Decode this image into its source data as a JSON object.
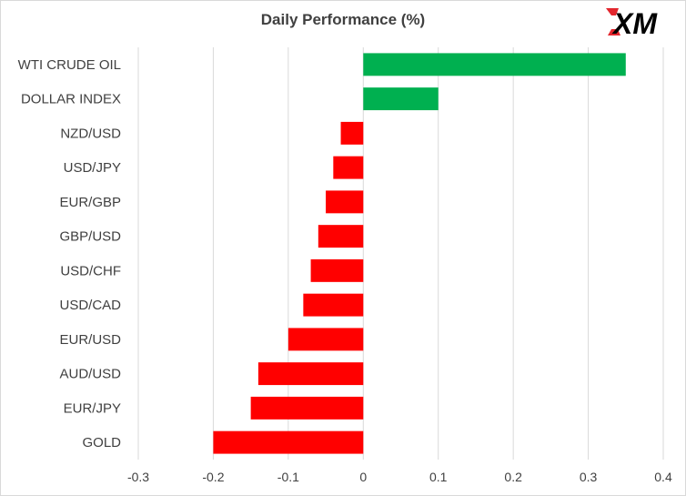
{
  "chart_data": {
    "type": "bar",
    "orientation": "horizontal",
    "title": "Daily Performance (%)",
    "categories": [
      "WTI CRUDE OIL",
      "DOLLAR INDEX",
      "NZD/USD",
      "USD/JPY",
      "EUR/GBP",
      "GBP/USD",
      "USD/CHF",
      "USD/CAD",
      "EUR/USD",
      "AUD/USD",
      "EUR/JPY",
      "GOLD"
    ],
    "values": [
      0.35,
      0.1,
      -0.03,
      -0.04,
      -0.05,
      -0.06,
      -0.07,
      -0.08,
      -0.1,
      -0.14,
      -0.15,
      -0.2
    ],
    "xlim": [
      -0.3,
      0.4
    ],
    "xticks": [
      -0.3,
      -0.2,
      -0.1,
      0,
      0.1,
      0.2,
      0.3,
      0.4
    ],
    "xtick_labels": [
      "-0.3",
      "-0.2",
      "-0.1",
      "0",
      "0.1",
      "0.2",
      "0.3",
      "0.4"
    ],
    "grid": "vertical",
    "legend": "none",
    "colors": {
      "positive": "#00b050",
      "negative": "#ff0000",
      "grid": "#d9d9d9",
      "text": "#404040"
    }
  },
  "brand": {
    "logo_text": "XM"
  }
}
